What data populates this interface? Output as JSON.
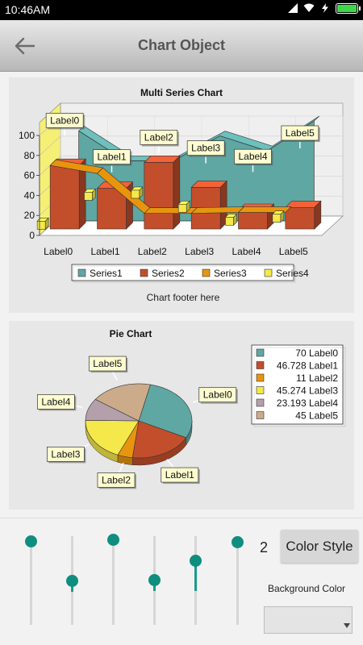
{
  "status": {
    "time": "10:46AM"
  },
  "appbar": {
    "title": "Chart Object"
  },
  "chart1": {
    "title": "Multi Series Chart",
    "footer": "Chart footer here"
  },
  "chart2": {
    "title": "Pie Chart"
  },
  "controls": {
    "number": "2",
    "color_style_label": "Color Style",
    "background_color_label": "Background Color",
    "sliders": [
      0.95,
      0.5,
      0.96,
      0.51,
      0.73,
      0.94
    ]
  },
  "colors": {
    "series1": "#5fa7a3",
    "series2": "#c34e2c",
    "series3": "#e8950e",
    "series4": "#f5e84a",
    "accent": "#0f8e7f"
  },
  "chart_data": [
    {
      "type": "bar",
      "title": "Multi Series Chart",
      "footer": "Chart footer here",
      "categories": [
        "Label0",
        "Label1",
        "Label2",
        "Label3",
        "Label4",
        "Label5"
      ],
      "ylim": [
        0,
        100
      ],
      "yticks": [
        "0",
        "20",
        "40",
        "60",
        "80",
        "100"
      ],
      "point_labels": [
        "Label0",
        "Label1",
        "Label2",
        "Label3",
        "Label4",
        "Label5"
      ],
      "legend": [
        "Series1",
        "Series2",
        "Series3",
        "Series4"
      ],
      "legend_position": "bottom",
      "series": [
        {
          "name": "Series1",
          "type": "area",
          "values": [
            90,
            60,
            60,
            85,
            70,
            100
          ]
        },
        {
          "name": "Series2",
          "type": "bar",
          "values": [
            70,
            47,
            73,
            48,
            25,
            28
          ]
        },
        {
          "name": "Series3",
          "type": "line",
          "values": [
            70,
            62,
            22,
            22,
            23,
            23
          ]
        },
        {
          "name": "Series4",
          "type": "point",
          "values": [
            11,
            40,
            42,
            28,
            15,
            18
          ]
        }
      ]
    },
    {
      "type": "pie",
      "title": "Pie Chart",
      "legend_position": "right",
      "slices": [
        {
          "label": "Label0",
          "value": 70,
          "legend": "70 Label0",
          "color": "#5fa7a3"
        },
        {
          "label": "Label1",
          "value": 46.728,
          "legend": "46.728 Label1",
          "color": "#c34e2c"
        },
        {
          "label": "Label2",
          "value": 11,
          "legend": "11 Label2",
          "color": "#e8950e"
        },
        {
          "label": "Label3",
          "value": 45.274,
          "legend": "45.274 Label3",
          "color": "#f5e84a"
        },
        {
          "label": "Label4",
          "value": 23.193,
          "legend": "23.193 Label4",
          "color": "#b3a0ab"
        },
        {
          "label": "Label5",
          "value": 45,
          "legend": "45 Label5",
          "color": "#ccab8a"
        }
      ]
    }
  ]
}
